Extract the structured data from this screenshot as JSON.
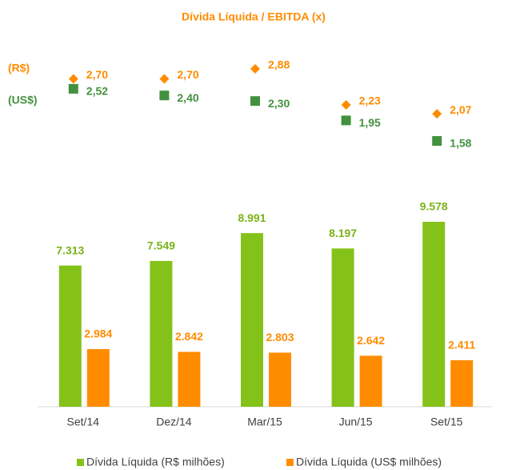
{
  "chart_data": [
    {
      "type": "scatter",
      "title": "Dívida Líquida / EBITDA (x)",
      "series": [
        {
          "name": "(R$)",
          "color": "#ff8c00",
          "marker": "diamond",
          "values": [
            2.7,
            2.7,
            2.88,
            2.23,
            2.07
          ],
          "value_labels": [
            "2,70",
            "2,70",
            "2,88",
            "2,23",
            "2,07"
          ]
        },
        {
          "name": "(US$)",
          "color": "#43913f",
          "marker": "square",
          "values": [
            2.52,
            2.4,
            2.3,
            1.95,
            1.58
          ],
          "value_labels": [
            "2,52",
            "2,40",
            "2,30",
            "1,95",
            "1,58"
          ]
        }
      ]
    },
    {
      "type": "bar",
      "categories": [
        "Set/14",
        "Dez/14",
        "Mar/15",
        "Jun/15",
        "Set/15"
      ],
      "series": [
        {
          "name": "Dívida Líquida (R$ milhões)",
          "color": "#84c21a",
          "label_color": "#7ab317",
          "values": [
            7313,
            7549,
            8991,
            8197,
            9578
          ],
          "value_labels": [
            "7.313",
            "7.549",
            "8.991",
            "8.197",
            "9.578"
          ]
        },
        {
          "name": "Dívida Líquida (US$ milhões)",
          "color": "#ff8c00",
          "label_color": "#ff8c00",
          "values": [
            2984,
            2842,
            2803,
            2642,
            2411
          ],
          "value_labels": [
            "2.984",
            "2.842",
            "2.803",
            "2.642",
            "2.411"
          ]
        }
      ]
    }
  ]
}
